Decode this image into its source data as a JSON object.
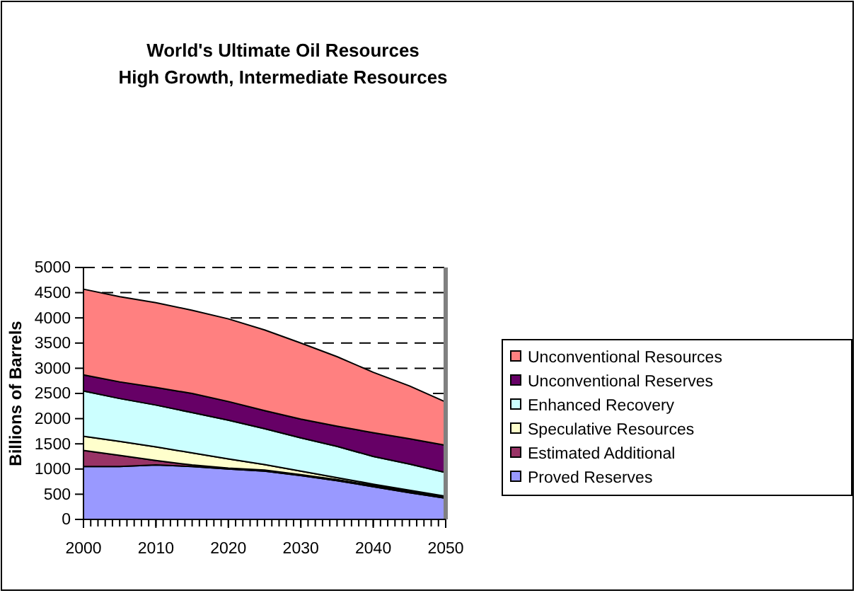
{
  "chart_data": {
    "type": "area",
    "stacked": true,
    "title": "World's Ultimate Oil Resources\nHigh Growth, Intermediate Resources",
    "ylabel": "Billions of Barrels",
    "x": [
      2000,
      2005,
      2010,
      2015,
      2020,
      2025,
      2030,
      2035,
      2040,
      2045,
      2050
    ],
    "series": [
      {
        "name": "Proved Reserves",
        "color": "#9999ff",
        "values": [
          1050,
          1050,
          1080,
          1050,
          1000,
          960,
          870,
          770,
          650,
          530,
          420
        ]
      },
      {
        "name": "Estimated Additional",
        "color": "#993366",
        "values": [
          320,
          220,
          90,
          30,
          20,
          20,
          20,
          20,
          20,
          20,
          20
        ]
      },
      {
        "name": "Speculative Resources",
        "color": "#ffffcc",
        "values": [
          280,
          280,
          270,
          240,
          180,
          110,
          70,
          40,
          30,
          30,
          20
        ]
      },
      {
        "name": "Enhanced Recovery",
        "color": "#ccffff",
        "values": [
          900,
          850,
          830,
          800,
          770,
          710,
          660,
          620,
          550,
          520,
          470
        ]
      },
      {
        "name": "Unconventional Reserves",
        "color": "#660066",
        "values": [
          320,
          330,
          350,
          380,
          370,
          360,
          370,
          400,
          470,
          500,
          540
        ]
      },
      {
        "name": "Unconventional Resources",
        "color": "#ff8080",
        "values": [
          1700,
          1690,
          1680,
          1650,
          1640,
          1600,
          1510,
          1380,
          1200,
          1050,
          860
        ]
      }
    ],
    "xlim": [
      2000,
      2050
    ],
    "xticks": [
      2000,
      2010,
      2020,
      2030,
      2040,
      2050
    ],
    "ylim": [
      0,
      5000
    ],
    "yticks": [
      0,
      500,
      1000,
      1500,
      2000,
      2500,
      3000,
      3500,
      4000,
      4500,
      5000
    ],
    "grid": "y",
    "legend": "right"
  }
}
